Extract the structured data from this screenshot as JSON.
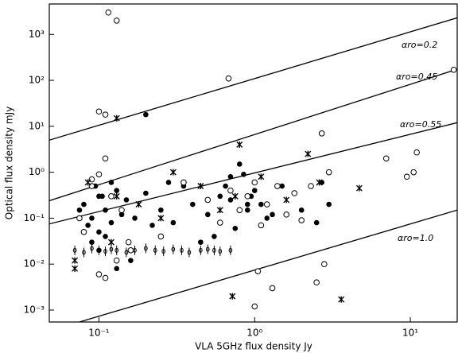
{
  "chart_data": {
    "type": "scatter",
    "x_label": "VLA 5GHz flux density Jy",
    "y_label": "Optical flux density mJy",
    "xscale": "log",
    "yscale": "log",
    "xlim": [
      0.048,
      20
    ],
    "ylim": [
      0.00055,
      4600
    ],
    "xticks": [
      {
        "value": 0.1,
        "label": "10⁻¹"
      },
      {
        "value": 1,
        "label": "10⁰"
      },
      {
        "value": 10,
        "label": "10¹"
      }
    ],
    "yticks": [
      {
        "value": 0.001,
        "label": "10⁻³"
      },
      {
        "value": 0.01,
        "label": "10⁻²"
      },
      {
        "value": 0.1,
        "label": "10⁻¹"
      },
      {
        "value": 1,
        "label": "10⁰"
      },
      {
        "value": 10,
        "label": "10¹"
      },
      {
        "value": 100,
        "label": "10²"
      },
      {
        "value": 1000,
        "label": "10³"
      }
    ],
    "lines": [
      {
        "label": "αro=0.2",
        "x": [
          0.048,
          20
        ],
        "y": [
          5,
          2300
        ]
      },
      {
        "label": "αro=0.45",
        "x": [
          0.048,
          20
        ],
        "y": [
          0.24,
          175
        ]
      },
      {
        "label": "αro=0.55",
        "x": [
          0.048,
          20
        ],
        "y": [
          0.075,
          12
        ]
      },
      {
        "label": "αro=1.0",
        "x": [
          0.075,
          20
        ],
        "y": [
          0.00055,
          0.15
        ]
      }
    ],
    "series": [
      {
        "marker": "filled",
        "color": "#000000",
        "x": [
          0.08,
          0.09,
          0.1,
          0.1,
          0.11,
          0.12,
          0.13,
          0.14,
          0.09,
          0.1,
          0.12,
          0.15,
          0.17,
          0.2,
          0.25,
          0.3,
          0.35,
          0.4,
          0.5,
          0.6,
          0.7,
          0.8,
          0.9,
          1.0,
          1.1,
          0.75,
          0.85,
          0.95,
          1.2,
          1.5,
          2.0,
          2.5,
          3.0,
          0.65,
          0.7,
          0.55,
          0.45,
          0.28,
          0.22,
          0.16,
          0.13,
          0.11,
          0.095,
          0.085,
          0.075,
          0.105,
          0.9,
          1.3,
          2.7,
          0.2
        ],
        "y": [
          0.2,
          0.1,
          0.05,
          0.3,
          0.15,
          0.08,
          0.4,
          0.12,
          0.03,
          0.02,
          0.6,
          0.25,
          0.1,
          0.35,
          0.15,
          0.08,
          0.5,
          0.2,
          0.12,
          0.3,
          0.25,
          1.5,
          0.15,
          0.4,
          0.2,
          0.06,
          0.9,
          0.3,
          0.1,
          0.5,
          0.15,
          0.08,
          0.2,
          0.5,
          0.8,
          0.04,
          0.03,
          0.6,
          0.07,
          0.012,
          0.008,
          0.04,
          0.5,
          0.07,
          0.15,
          0.3,
          0.2,
          0.12,
          0.6,
          18
        ]
      },
      {
        "marker": "open",
        "color": "#000000",
        "x": [
          0.09,
          0.1,
          0.12,
          0.14,
          0.11,
          0.08,
          0.075,
          0.1,
          0.13,
          0.16,
          0.1,
          0.11,
          0.115,
          0.13,
          0.25,
          0.35,
          0.5,
          0.6,
          0.7,
          0.8,
          0.9,
          1.0,
          1.1,
          1.2,
          1.4,
          1.6,
          1.8,
          2.0,
          2.3,
          2.7,
          3.0,
          0.11,
          0.155,
          0.68,
          1.05,
          2.8,
          7.0,
          9.5,
          10.5,
          11.0,
          19,
          1.0,
          1.3,
          2.5,
          0.09
        ],
        "y": [
          0.5,
          0.9,
          0.3,
          0.15,
          2.0,
          0.05,
          0.1,
          0.006,
          0.012,
          0.02,
          21,
          18,
          3000,
          2000,
          0.04,
          0.6,
          0.25,
          0.08,
          0.4,
          0.15,
          0.3,
          0.6,
          0.07,
          0.2,
          0.5,
          0.12,
          0.35,
          0.09,
          0.5,
          7,
          1.0,
          0.005,
          0.03,
          110,
          0.007,
          0.01,
          2.0,
          0.8,
          1.0,
          2.7,
          170,
          0.0012,
          0.003,
          0.004,
          0.7
        ]
      },
      {
        "marker": "cross",
        "color": "#000000",
        "x": [
          0.07,
          0.085,
          0.12,
          0.13,
          0.18,
          0.25,
          0.3,
          0.45,
          0.6,
          0.75,
          0.8,
          1.1,
          1.6,
          2.2,
          2.6,
          4.7,
          0.72,
          3.6,
          0.13,
          0.07
        ],
        "y": [
          0.012,
          0.6,
          0.03,
          15,
          0.2,
          0.1,
          1.0,
          0.5,
          0.15,
          0.3,
          4.0,
          0.8,
          0.25,
          2.5,
          0.6,
          0.45,
          0.002,
          0.0017,
          0.3,
          0.008
        ]
      },
      {
        "marker": "limit",
        "color": "#000000",
        "x": [
          0.07,
          0.08,
          0.09,
          0.1,
          0.11,
          0.12,
          0.13,
          0.15,
          0.17,
          0.2,
          0.23,
          0.26,
          0.3,
          0.34,
          0.38,
          0.45,
          0.5,
          0.55,
          0.6,
          0.7
        ],
        "y": [
          0.02,
          0.018,
          0.022,
          0.02,
          0.019,
          0.021,
          0.02,
          0.018,
          0.02,
          0.022,
          0.02,
          0.019,
          0.021,
          0.02,
          0.018,
          0.02,
          0.021,
          0.02,
          0.019,
          0.02
        ]
      }
    ]
  }
}
